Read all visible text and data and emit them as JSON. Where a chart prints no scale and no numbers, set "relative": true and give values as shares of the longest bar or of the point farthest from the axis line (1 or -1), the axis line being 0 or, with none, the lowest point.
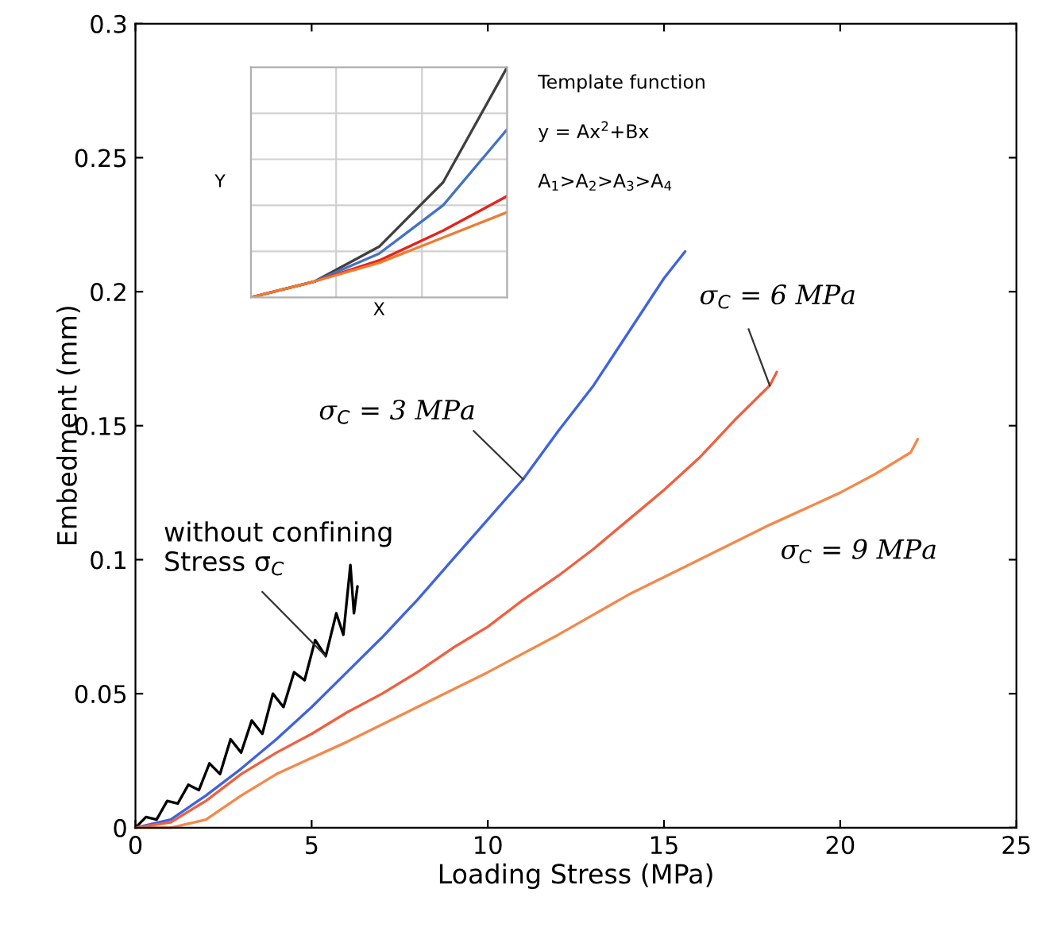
{
  "chart_data": [
    {
      "type": "line",
      "xlabel": "Loading Stress (MPa)",
      "ylabel": "Embedment (mm)",
      "xlim": [
        0,
        25
      ],
      "ylim": [
        0,
        0.3
      ],
      "xticks": [
        0,
        5,
        10,
        15,
        20,
        25
      ],
      "yticks": [
        0,
        0.05,
        0.1,
        0.15,
        0.2,
        0.25,
        0.3
      ],
      "grid": false,
      "legend": false,
      "series": [
        {
          "name": "without confining\nStress σ$_{C}$",
          "color": "#000000",
          "x": [
            0,
            0.3,
            0.6,
            0.9,
            1.2,
            1.5,
            1.8,
            2.1,
            2.4,
            2.7,
            3.0,
            3.3,
            3.6,
            3.9,
            4.2,
            4.5,
            4.8,
            5.1,
            5.4,
            5.7,
            5.9,
            6.1,
            6.2,
            6.3
          ],
          "values": [
            0,
            0.004,
            0.003,
            0.01,
            0.009,
            0.016,
            0.014,
            0.024,
            0.02,
            0.033,
            0.028,
            0.04,
            0.035,
            0.05,
            0.045,
            0.058,
            0.055,
            0.07,
            0.064,
            0.08,
            0.072,
            0.098,
            0.08,
            0.09
          ]
        },
        {
          "name": "σ$_{C}$ = 3 MPa",
          "color": "#3f63e0",
          "x": [
            0,
            1,
            2,
            3,
            4,
            5,
            6,
            7,
            8,
            9,
            10,
            11,
            12,
            13,
            14,
            15,
            15.6
          ],
          "values": [
            0,
            0.003,
            0.012,
            0.022,
            0.033,
            0.045,
            0.058,
            0.071,
            0.085,
            0.1,
            0.115,
            0.13,
            0.148,
            0.165,
            0.185,
            0.205,
            0.215
          ]
        },
        {
          "name": "σ$_{C}$ = 6 MPa",
          "color": "#f0603f",
          "x": [
            0,
            1,
            2,
            3,
            4,
            5,
            6,
            7,
            8,
            9,
            10,
            11,
            12,
            13,
            14,
            15,
            16,
            17,
            18,
            18.2
          ],
          "values": [
            0,
            0.002,
            0.01,
            0.02,
            0.028,
            0.035,
            0.043,
            0.05,
            0.058,
            0.067,
            0.075,
            0.085,
            0.094,
            0.104,
            0.115,
            0.126,
            0.138,
            0.152,
            0.165,
            0.17
          ]
        },
        {
          "name": "σ$_{C}$ = 9 MPa",
          "color": "#f5884a",
          "x": [
            0,
            1,
            2,
            3,
            4,
            5,
            6,
            8,
            10,
            12,
            14,
            16,
            18,
            20,
            21,
            22,
            22.2
          ],
          "values": [
            0,
            0,
            0.003,
            0.012,
            0.02,
            0.026,
            0.032,
            0.045,
            0.058,
            0.072,
            0.087,
            0.1,
            0.113,
            0.125,
            0.132,
            0.14,
            0.145
          ]
        }
      ]
    },
    {
      "type": "line",
      "relative": true,
      "xlabel": "X",
      "ylabel": "Y",
      "grid": true,
      "tick_labels": false,
      "categories": [
        null,
        null,
        null,
        null,
        null
      ],
      "annotations": [
        "Template function",
        "y = Ax$^{2}$+Bx",
        "A$_{1}$>A$_{2}$>A$_{3}$>A$_{4}$"
      ],
      "series": [
        {
          "color": "#404040",
          "values": [
            0,
            0.07,
            0.22,
            0.5,
            1.0
          ]
        },
        {
          "color": "#4472c4",
          "values": [
            0,
            0.07,
            0.19,
            0.4,
            0.73
          ]
        },
        {
          "color": "#e8221a",
          "values": [
            0,
            0.07,
            0.16,
            0.29,
            0.44
          ]
        },
        {
          "color": "#ed7d31",
          "values": [
            0,
            0.07,
            0.15,
            0.26,
            0.37
          ]
        }
      ]
    }
  ]
}
